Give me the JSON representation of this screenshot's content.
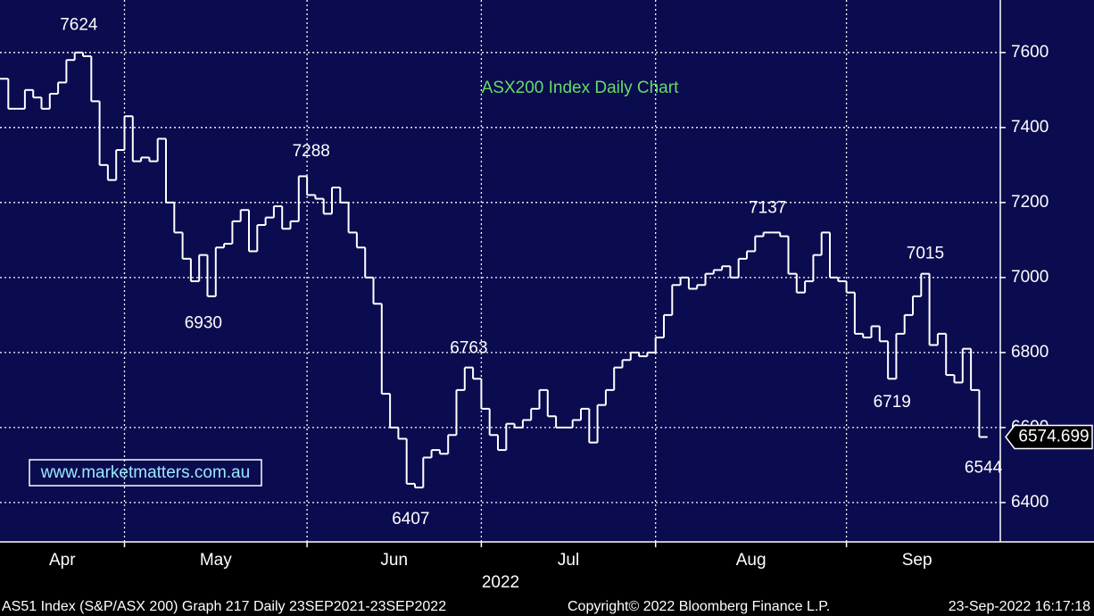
{
  "chart_data": {
    "type": "step",
    "title": "ASX200 Index Daily Chart",
    "watermark": "www.marketmatters.com.au",
    "x_title": "2022",
    "footer": [
      "AS51 Index (S&P/ASX 200) Graph 217  Daily 23SEP2021-23SEP2022",
      "Copyright© 2022 Bloomberg Finance L.P.",
      "23-Sep-2022 16:17:18"
    ],
    "color": "#ffffff",
    "grid": true,
    "ylim": [
      6295,
      7740
    ],
    "yticks": [
      6400,
      6600,
      6800,
      7000,
      7200,
      7400,
      7600
    ],
    "categories": [
      "Apr",
      null,
      null,
      null,
      null,
      null,
      null,
      null,
      null,
      null,
      null,
      null,
      null,
      null,
      null,
      "May",
      null,
      null,
      null,
      null,
      null,
      null,
      null,
      null,
      null,
      null,
      null,
      null,
      null,
      null,
      null,
      null,
      null,
      null,
      null,
      null,
      null,
      "Jun",
      null,
      null,
      null,
      null,
      null,
      null,
      null,
      null,
      null,
      null,
      null,
      null,
      null,
      null,
      null,
      null,
      null,
      null,
      null,
      null,
      "Jul",
      null,
      null,
      null,
      null,
      null,
      null,
      null,
      null,
      null,
      null,
      null,
      null,
      null,
      null,
      null,
      null,
      null,
      null,
      null,
      null,
      "Aug",
      null,
      null,
      null,
      null,
      null,
      null,
      null,
      null,
      null,
      null,
      null,
      null,
      null,
      null,
      null,
      null,
      null,
      null,
      null,
      null,
      null,
      null,
      "Sep",
      null,
      null,
      null,
      null,
      null,
      null,
      null,
      null,
      null,
      null,
      null,
      null,
      null,
      null,
      null,
      null
    ],
    "values": [
      7530,
      7450,
      7450,
      7500,
      7480,
      7450,
      7490,
      7520,
      7580,
      7600,
      7590,
      7470,
      7300,
      7260,
      7340,
      7430,
      7310,
      7320,
      7310,
      7370,
      7200,
      7120,
      7050,
      6990,
      7060,
      6950,
      7080,
      7090,
      7150,
      7180,
      7070,
      7140,
      7160,
      7190,
      7130,
      7150,
      7270,
      7220,
      7210,
      7170,
      7240,
      7200,
      7120,
      7080,
      7000,
      6930,
      6690,
      6600,
      6570,
      6450,
      6440,
      6520,
      6540,
      6530,
      6580,
      6700,
      6760,
      6730,
      6650,
      6580,
      6540,
      6610,
      6600,
      6620,
      6650,
      6700,
      6630,
      6600,
      6600,
      6620,
      6650,
      6560,
      6660,
      6700,
      6760,
      6780,
      6800,
      6790,
      6800,
      6840,
      6900,
      6980,
      7000,
      6970,
      6980,
      7010,
      7020,
      7030,
      7000,
      7050,
      7070,
      7110,
      7120,
      7120,
      7110,
      7010,
      6960,
      6990,
      7060,
      7120,
      7000,
      6990,
      6960,
      6850,
      6840,
      6870,
      6830,
      6730,
      6850,
      6900,
      6950,
      7010,
      6820,
      6850,
      6740,
      6720,
      6810,
      6700,
      6574.699
    ],
    "annotations": [
      {
        "value": 7624,
        "index": 9,
        "position": "above"
      },
      {
        "value": 6930,
        "index": 24,
        "position": "below"
      },
      {
        "value": 7288,
        "index": 37,
        "position": "above"
      },
      {
        "value": 6407,
        "index": 49,
        "position": "below"
      },
      {
        "value": 6763,
        "index": 56,
        "position": "above"
      },
      {
        "value": 7137,
        "index": 92,
        "position": "above"
      },
      {
        "value": 7015,
        "index": 111,
        "position": "above"
      },
      {
        "value": 6719,
        "index": 107,
        "position": "below"
      },
      {
        "value": 6544,
        "index": 118,
        "position": "below"
      }
    ]
  }
}
